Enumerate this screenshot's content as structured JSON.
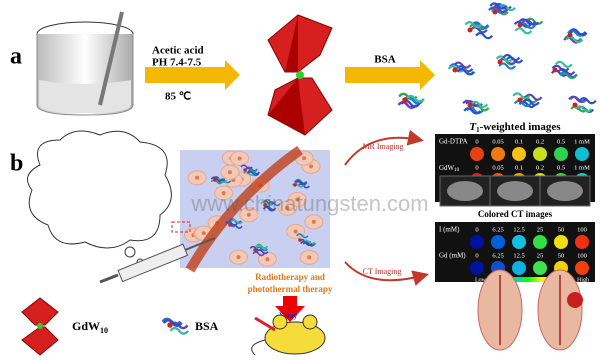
{
  "panel_a": {
    "label": "a",
    "step1": {
      "line1": "Acetic acid",
      "line2": "PH 7.4-7.5",
      "temperature": "85 ℃"
    },
    "step2": "BSA"
  },
  "panel_b": {
    "label": "b",
    "mr_arrow": "MR Imaging",
    "ct_arrow": "CT Imaging",
    "therapy": {
      "line1": "Radiotherapy and",
      "line2": "photothermal therapy"
    },
    "xray": "X-ray",
    "mr_panel": {
      "title": {
        "symbol": "T",
        "subscript": "1",
        "rest": "-weighted images"
      },
      "rows": [
        {
          "label": "Gd-DTPA",
          "values": [
            "0",
            "0.05",
            "0.1",
            "0.2",
            "0.5",
            "1 mM"
          ]
        },
        {
          "label": {
            "base": "GdW",
            "subscript": "10"
          },
          "values": [
            "0",
            "0.05",
            "0.1",
            "0.2",
            "0.5",
            "1 mM"
          ]
        }
      ],
      "low": "Low",
      "high": "High"
    },
    "ct_panel": {
      "title": "Colored CT images",
      "rows": [
        {
          "label": "I (mM)",
          "values": [
            "0",
            "6.25",
            "12.5",
            "25",
            "50",
            "100"
          ]
        },
        {
          "label": "Gd (mM)",
          "values": [
            "0",
            "6.25",
            "12.5",
            "25",
            "50",
            "100"
          ]
        }
      ],
      "low": "Low",
      "high": "High"
    }
  },
  "legend": {
    "gdw": {
      "base": "GdW",
      "subscript": "10"
    },
    "bsa": "BSA"
  },
  "watermark": "www.chinatungsten.com"
}
